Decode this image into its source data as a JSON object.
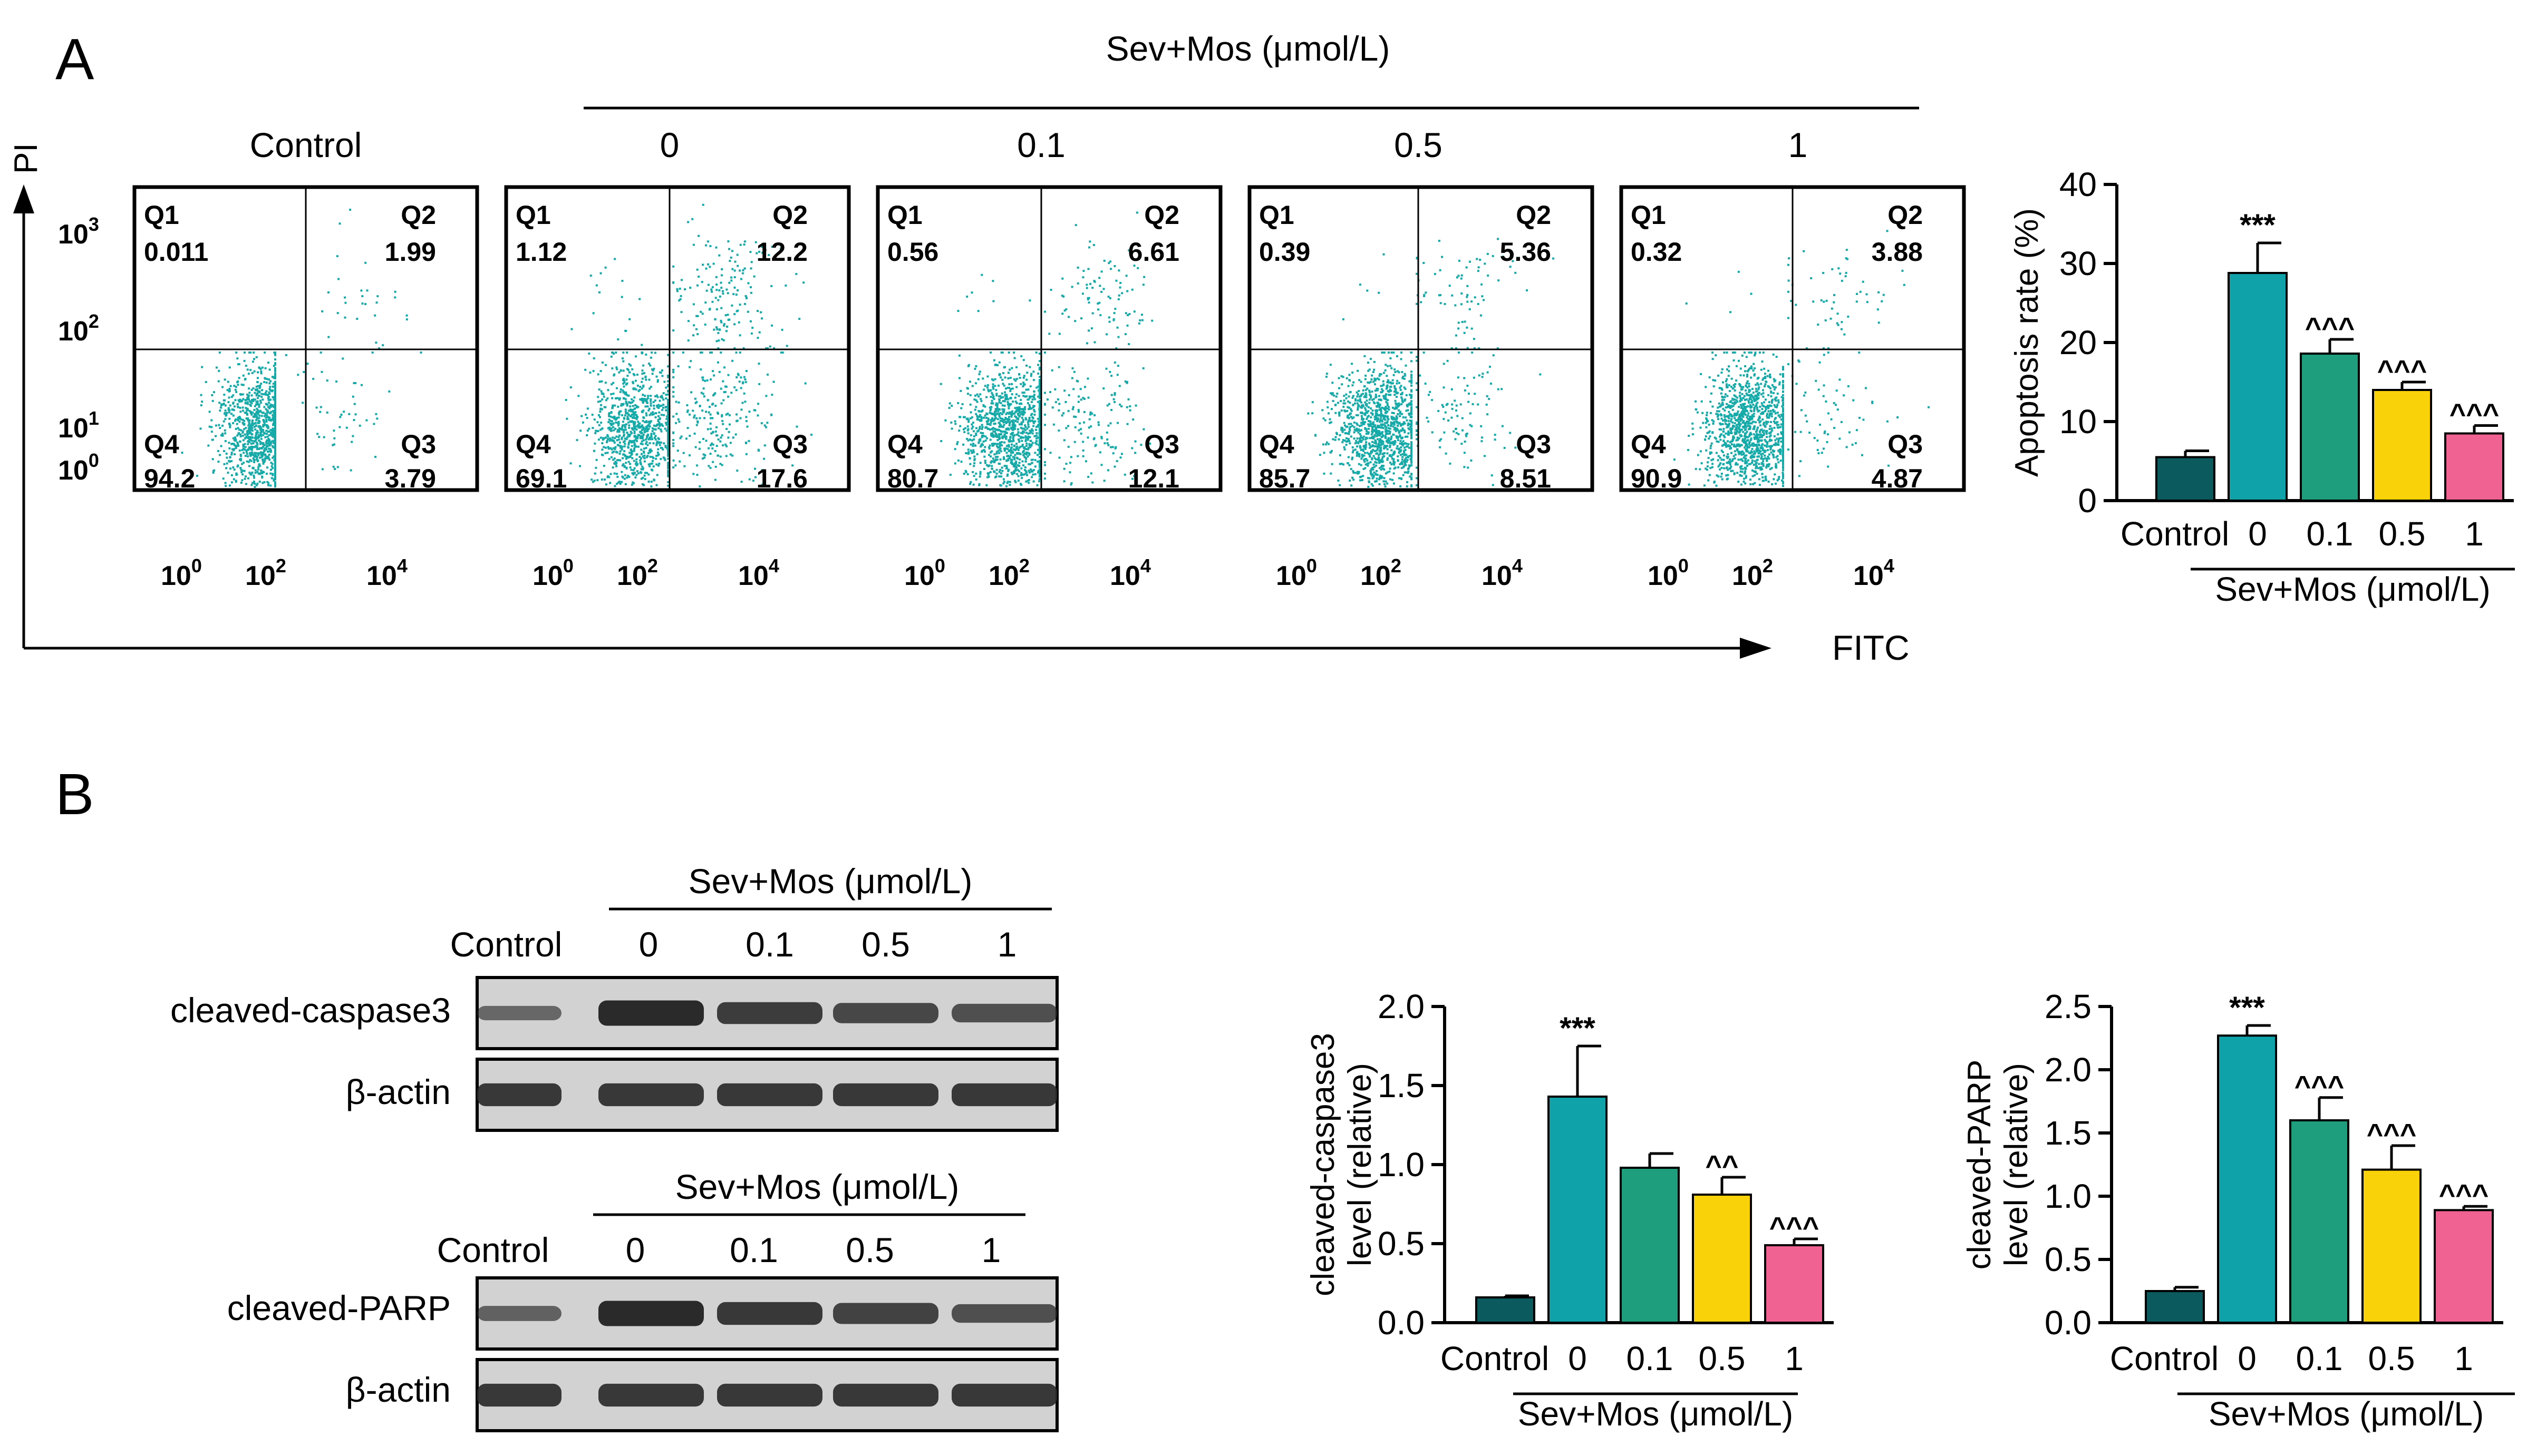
{
  "colors": {
    "control": "#0b5b5e",
    "dose_0": "#0fa2a9",
    "dose_0_1": "#1e9e7c",
    "dose_0_5": "#fad20a",
    "dose_1": "#f06292",
    "scatter": "#15aaa8",
    "ink": "#000000",
    "blot_band": "#2a2a2a",
    "blot_bg": "#d2d2d2"
  },
  "panel_a": {
    "letter": "A",
    "group_header": "Sev+Mos (μmol/L)",
    "y_axis": "PI",
    "x_axis": "FITC",
    "x_ticks": [
      "10",
      "10",
      "10"
    ],
    "x_tick_exps": [
      "0",
      "2",
      "4"
    ],
    "y_ticks": [
      "10",
      "10",
      "10",
      "10"
    ],
    "y_tick_exps": [
      "3",
      "2",
      "1",
      "0"
    ],
    "plots": [
      {
        "label": "Control",
        "q1": "0.011",
        "q2": "1.99",
        "q3": "3.79",
        "q4": "94.2"
      },
      {
        "label": "0",
        "q1": "1.12",
        "q2": "12.2",
        "q3": "17.6",
        "q4": "69.1"
      },
      {
        "label": "0.1",
        "q1": "0.56",
        "q2": "6.61",
        "q3": "12.1",
        "q4": "80.7"
      },
      {
        "label": "0.5",
        "q1": "0.39",
        "q2": "5.36",
        "q3": "8.51",
        "q4": "85.7"
      },
      {
        "label": "1",
        "q1": "0.32",
        "q2": "3.88",
        "q3": "4.87",
        "q4": "90.9"
      }
    ],
    "quadrant_names": {
      "q1": "Q1",
      "q2": "Q2",
      "q3": "Q3",
      "q4": "Q4"
    }
  },
  "panel_b": {
    "letter": "B",
    "blots": [
      {
        "group_header": "Sev+Mos (μmol/L)",
        "lanes": [
          "Control",
          "0",
          "0.1",
          "0.5",
          "1"
        ],
        "rows": [
          {
            "label": "cleaved-caspase3",
            "intensity": [
              0.35,
              1.0,
              0.8,
              0.7,
              0.6
            ]
          },
          {
            "label": "β-actin",
            "intensity": [
              0.85,
              0.85,
              0.85,
              0.85,
              0.85
            ]
          }
        ]
      },
      {
        "group_header": "Sev+Mos (μmol/L)",
        "lanes": [
          "Control",
          "0",
          "0.1",
          "0.5",
          "1"
        ],
        "rows": [
          {
            "label": "cleaved-PARP",
            "intensity": [
              0.4,
              1.0,
              0.85,
              0.75,
              0.6
            ]
          },
          {
            "label": "β-actin",
            "intensity": [
              0.85,
              0.85,
              0.85,
              0.85,
              0.85
            ]
          }
        ]
      }
    ]
  },
  "chart_data": [
    {
      "type": "bar",
      "title": "",
      "ylabel": "Apoptosis rate (%)",
      "xlabel": "Sev+Mos (μmol/L)",
      "categories": [
        "Control",
        "0",
        "0.1",
        "0.5",
        "1"
      ],
      "values": [
        5.5,
        28.8,
        18.6,
        14.0,
        8.5
      ],
      "errors": [
        0.8,
        3.8,
        1.8,
        1.0,
        1.0
      ],
      "annotations": [
        "",
        "***",
        "^^^",
        "^^^",
        "^^^"
      ],
      "ylim": [
        0,
        40
      ],
      "yticks": [
        "0",
        "10",
        "20",
        "30",
        "40"
      ],
      "grid": false
    },
    {
      "type": "bar",
      "title": "",
      "ylabel": "cleaved-caspase3 level (relative)",
      "ylabel_lines": [
        "cleaved-caspase3",
        "level (relative)"
      ],
      "xlabel": "Sev+Mos (μmol/L)",
      "categories": [
        "Control",
        "0",
        "0.1",
        "0.5",
        "1"
      ],
      "values": [
        0.16,
        1.43,
        0.98,
        0.81,
        0.49
      ],
      "errors": [
        0.01,
        0.32,
        0.09,
        0.11,
        0.04
      ],
      "annotations": [
        "",
        "***",
        "",
        "^^",
        "^^^"
      ],
      "ylim": [
        0,
        2.0
      ],
      "yticks": [
        "0.0",
        "0.5",
        "1.0",
        "1.5",
        "2.0"
      ],
      "grid": false
    },
    {
      "type": "bar",
      "title": "",
      "ylabel": "cleaved-PARP level (relative)",
      "ylabel_lines": [
        "cleaved-PARP",
        "level (relative)"
      ],
      "xlabel": "Sev+Mos (μmol/L)",
      "categories": [
        "Control",
        "0",
        "0.1",
        "0.5",
        "1"
      ],
      "values": [
        0.25,
        2.27,
        1.6,
        1.21,
        0.89
      ],
      "errors": [
        0.03,
        0.08,
        0.18,
        0.19,
        0.03
      ],
      "annotations": [
        "",
        "***",
        "^^^",
        "^^^",
        "^^^"
      ],
      "ylim": [
        0,
        2.5
      ],
      "yticks": [
        "0.0",
        "0.5",
        "1.0",
        "1.5",
        "2.0",
        "2.5"
      ],
      "grid": false
    }
  ]
}
